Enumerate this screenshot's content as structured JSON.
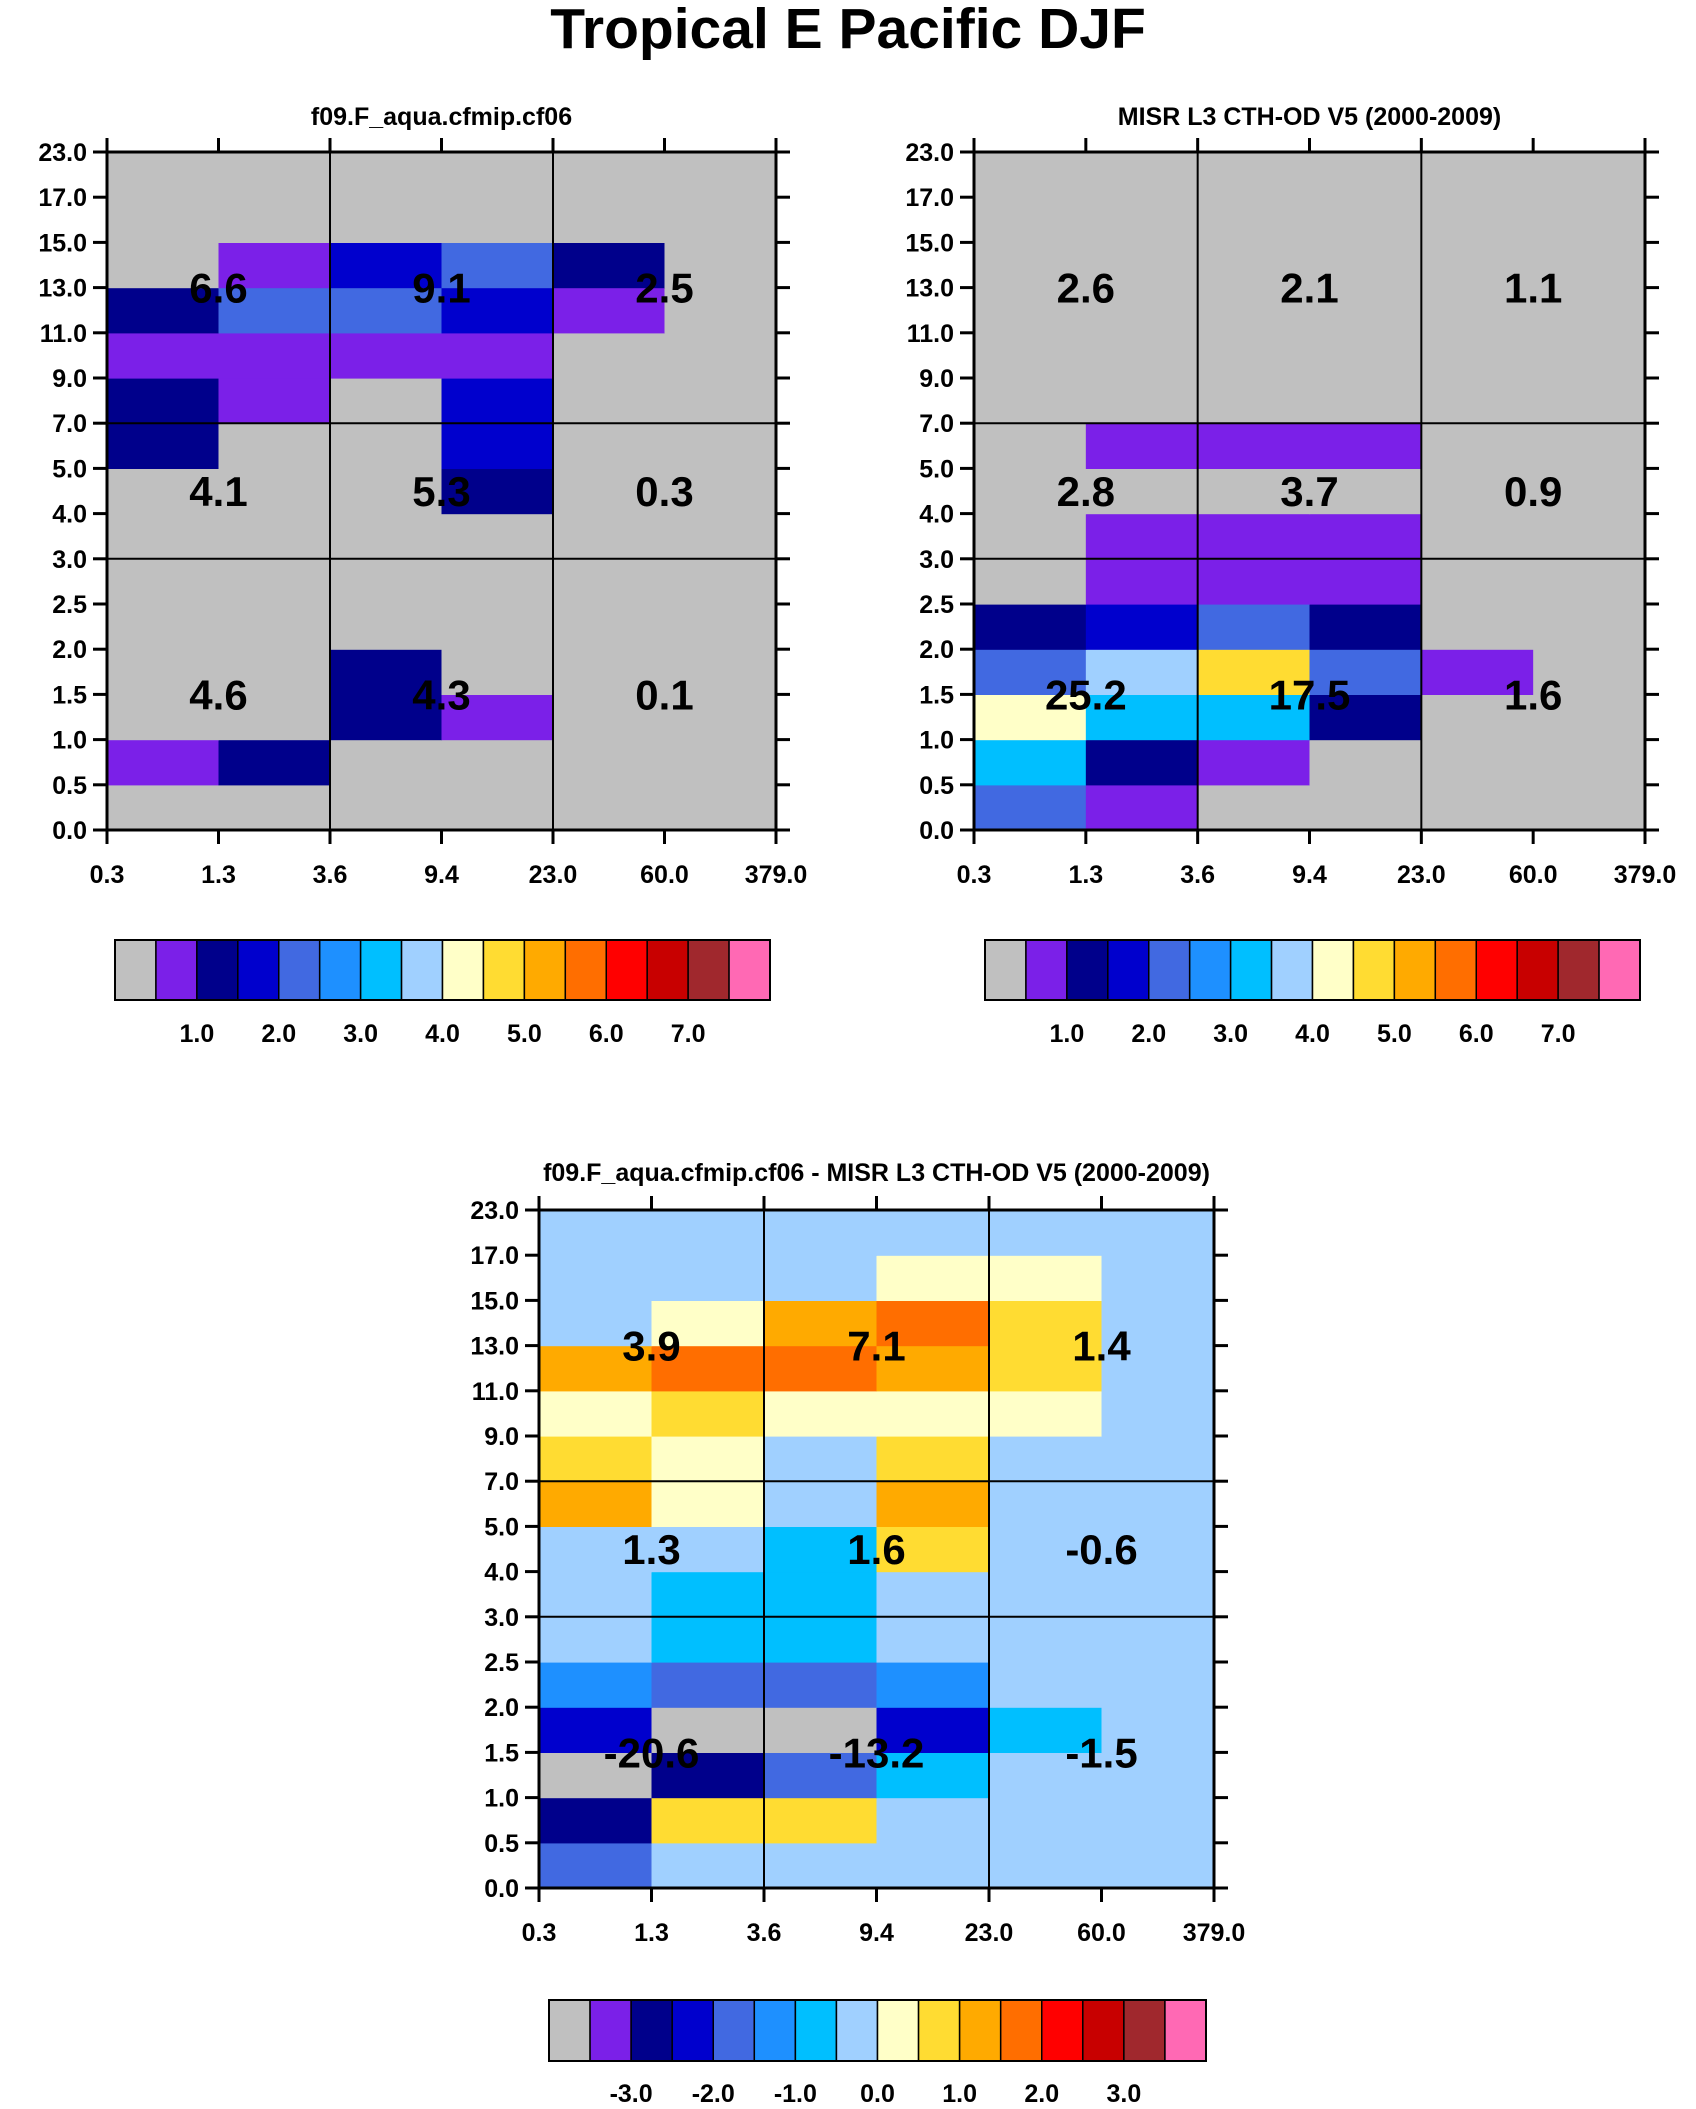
{
  "title": "Tropical E Pacific DJF",
  "chart_data": [
    {
      "type": "heatmap",
      "title": "f09.F_aqua.cfmip.cf06",
      "x_ticks": [
        "0.3",
        "1.3",
        "3.6",
        "9.4",
        "23.0",
        "60.0",
        "379.0"
      ],
      "y_ticks": [
        "0.0",
        "0.5",
        "1.0",
        "1.5",
        "2.0",
        "2.5",
        "3.0",
        "4.0",
        "5.0",
        "7.0",
        "9.0",
        "11.0",
        "13.0",
        "15.0",
        "17.0",
        "23.0"
      ],
      "cells": [
        [
          0,
          0,
          0,
          0,
          0,
          0
        ],
        [
          1,
          2,
          0,
          0,
          0,
          0
        ],
        [
          0,
          0,
          2,
          1,
          0,
          0
        ],
        [
          0,
          0,
          2,
          0,
          0,
          0
        ],
        [
          0,
          0,
          0,
          0,
          0,
          0
        ],
        [
          0,
          0,
          0,
          0,
          0,
          0
        ],
        [
          0,
          0,
          0,
          0,
          0,
          0
        ],
        [
          0,
          0,
          0,
          2,
          0,
          0
        ],
        [
          2,
          0,
          0,
          3,
          0,
          0
        ],
        [
          2,
          1,
          0,
          3,
          0,
          0
        ],
        [
          1,
          1,
          1,
          1,
          0,
          0
        ],
        [
          2,
          4,
          4,
          3,
          1,
          0
        ],
        [
          0,
          1,
          3,
          4,
          2,
          0
        ],
        [
          0,
          0,
          0,
          0,
          0,
          0
        ],
        [
          0,
          0,
          0,
          0,
          0,
          0
        ]
      ],
      "regions": [
        {
          "label": "4.6",
          "col": 0,
          "row": 0
        },
        {
          "label": "4.3",
          "col": 1,
          "row": 0
        },
        {
          "label": "0.1",
          "col": 2,
          "row": 0
        },
        {
          "label": "4.1",
          "col": 0,
          "row": 1
        },
        {
          "label": "5.3",
          "col": 1,
          "row": 1
        },
        {
          "label": "0.3",
          "col": 2,
          "row": 1
        },
        {
          "label": "6.6",
          "col": 0,
          "row": 2
        },
        {
          "label": "9.1",
          "col": 1,
          "row": 2
        },
        {
          "label": "2.5",
          "col": 2,
          "row": 2
        }
      ],
      "colorbar": {
        "colors": [
          "#c0c0c0",
          "#7b20e8",
          "#00008b",
          "#0000cd",
          "#4169e1",
          "#1e90ff",
          "#00bfff",
          "#a0d0ff",
          "#ffffc8",
          "#ffdc32",
          "#ffaa00",
          "#ff6e00",
          "#ff0000",
          "#c80000",
          "#a0282d",
          "#ff69b4"
        ],
        "labels": [
          "1.0",
          "2.0",
          "3.0",
          "4.0",
          "5.0",
          "6.0",
          "7.0"
        ],
        "label_start_index": 2
      }
    },
    {
      "type": "heatmap",
      "title": "MISR L3 CTH-OD V5 (2000-2009)",
      "x_ticks": [
        "0.3",
        "1.3",
        "3.6",
        "9.4",
        "23.0",
        "60.0",
        "379.0"
      ],
      "y_ticks": [
        "0.0",
        "0.5",
        "1.0",
        "1.5",
        "2.0",
        "2.5",
        "3.0",
        "4.0",
        "5.0",
        "7.0",
        "9.0",
        "11.0",
        "13.0",
        "15.0",
        "17.0",
        "23.0"
      ],
      "cells": [
        [
          4,
          1,
          0,
          0,
          0,
          0
        ],
        [
          6,
          2,
          1,
          0,
          0,
          0
        ],
        [
          8,
          6,
          6,
          2,
          0,
          0
        ],
        [
          4,
          7,
          9,
          4,
          1,
          0
        ],
        [
          2,
          3,
          4,
          2,
          0,
          0
        ],
        [
          0,
          1,
          1,
          1,
          0,
          0
        ],
        [
          0,
          1,
          1,
          1,
          0,
          0
        ],
        [
          0,
          0,
          0,
          0,
          0,
          0
        ],
        [
          0,
          1,
          1,
          1,
          0,
          0
        ],
        [
          0,
          0,
          0,
          0,
          0,
          0
        ],
        [
          0,
          0,
          0,
          0,
          0,
          0
        ],
        [
          0,
          0,
          0,
          0,
          0,
          0
        ],
        [
          0,
          0,
          0,
          0,
          0,
          0
        ],
        [
          0,
          0,
          0,
          0,
          0,
          0
        ],
        [
          0,
          0,
          0,
          0,
          0,
          0
        ]
      ],
      "regions": [
        {
          "label": "25.2",
          "col": 0,
          "row": 0
        },
        {
          "label": "17.5",
          "col": 1,
          "row": 0
        },
        {
          "label": "1.6",
          "col": 2,
          "row": 0
        },
        {
          "label": "2.8",
          "col": 0,
          "row": 1
        },
        {
          "label": "3.7",
          "col": 1,
          "row": 1
        },
        {
          "label": "0.9",
          "col": 2,
          "row": 1
        },
        {
          "label": "2.6",
          "col": 0,
          "row": 2
        },
        {
          "label": "2.1",
          "col": 1,
          "row": 2
        },
        {
          "label": "1.1",
          "col": 2,
          "row": 2
        }
      ],
      "colorbar": {
        "colors": [
          "#c0c0c0",
          "#7b20e8",
          "#00008b",
          "#0000cd",
          "#4169e1",
          "#1e90ff",
          "#00bfff",
          "#a0d0ff",
          "#ffffc8",
          "#ffdc32",
          "#ffaa00",
          "#ff6e00",
          "#ff0000",
          "#c80000",
          "#a0282d",
          "#ff69b4"
        ],
        "labels": [
          "1.0",
          "2.0",
          "3.0",
          "4.0",
          "5.0",
          "6.0",
          "7.0"
        ],
        "label_start_index": 2
      }
    },
    {
      "type": "heatmap",
      "title": "f09.F_aqua.cfmip.cf06 - MISR L3 CTH-OD V5 (2000-2009)",
      "x_ticks": [
        "0.3",
        "1.3",
        "3.6",
        "9.4",
        "23.0",
        "60.0",
        "379.0"
      ],
      "y_ticks": [
        "0.0",
        "0.5",
        "1.0",
        "1.5",
        "2.0",
        "2.5",
        "3.0",
        "4.0",
        "5.0",
        "7.0",
        "9.0",
        "11.0",
        "13.0",
        "15.0",
        "17.0",
        "23.0"
      ],
      "cells": [
        [
          4,
          7,
          7,
          7,
          7,
          7
        ],
        [
          2,
          9,
          9,
          7,
          7,
          7
        ],
        [
          0,
          2,
          4,
          6,
          7,
          7
        ],
        [
          3,
          0,
          0,
          3,
          6,
          7
        ],
        [
          5,
          4,
          4,
          5,
          7,
          7
        ],
        [
          7,
          6,
          6,
          7,
          7,
          7
        ],
        [
          7,
          6,
          6,
          7,
          7,
          7
        ],
        [
          7,
          7,
          6,
          9,
          7,
          7
        ],
        [
          10,
          8,
          7,
          10,
          7,
          7
        ],
        [
          9,
          8,
          7,
          9,
          7,
          7
        ],
        [
          8,
          9,
          8,
          8,
          8,
          7
        ],
        [
          10,
          11,
          11,
          10,
          9,
          7
        ],
        [
          7,
          8,
          10,
          11,
          9,
          7
        ],
        [
          7,
          7,
          7,
          8,
          8,
          7
        ],
        [
          7,
          7,
          7,
          7,
          7,
          7
        ]
      ],
      "regions": [
        {
          "label": "-20.6",
          "col": 0,
          "row": 0
        },
        {
          "label": "-13.2",
          "col": 1,
          "row": 0
        },
        {
          "label": "-1.5",
          "col": 2,
          "row": 0
        },
        {
          "label": "1.3",
          "col": 0,
          "row": 1
        },
        {
          "label": "1.6",
          "col": 1,
          "row": 1
        },
        {
          "label": "-0.6",
          "col": 2,
          "row": 1
        },
        {
          "label": "3.9",
          "col": 0,
          "row": 2
        },
        {
          "label": "7.1",
          "col": 1,
          "row": 2
        },
        {
          "label": "1.4",
          "col": 2,
          "row": 2
        }
      ],
      "colorbar": {
        "colors": [
          "#c0c0c0",
          "#7b20e8",
          "#00008b",
          "#0000cd",
          "#4169e1",
          "#1e90ff",
          "#00bfff",
          "#a0d0ff",
          "#ffffc8",
          "#ffdc32",
          "#ffaa00",
          "#ff6e00",
          "#ff0000",
          "#c80000",
          "#a0282d",
          "#ff69b4"
        ],
        "labels": [
          "-3.0",
          "-2.0",
          "-1.0",
          "0.0",
          "1.0",
          "2.0",
          "3.0"
        ],
        "label_start_index": 2
      }
    }
  ]
}
